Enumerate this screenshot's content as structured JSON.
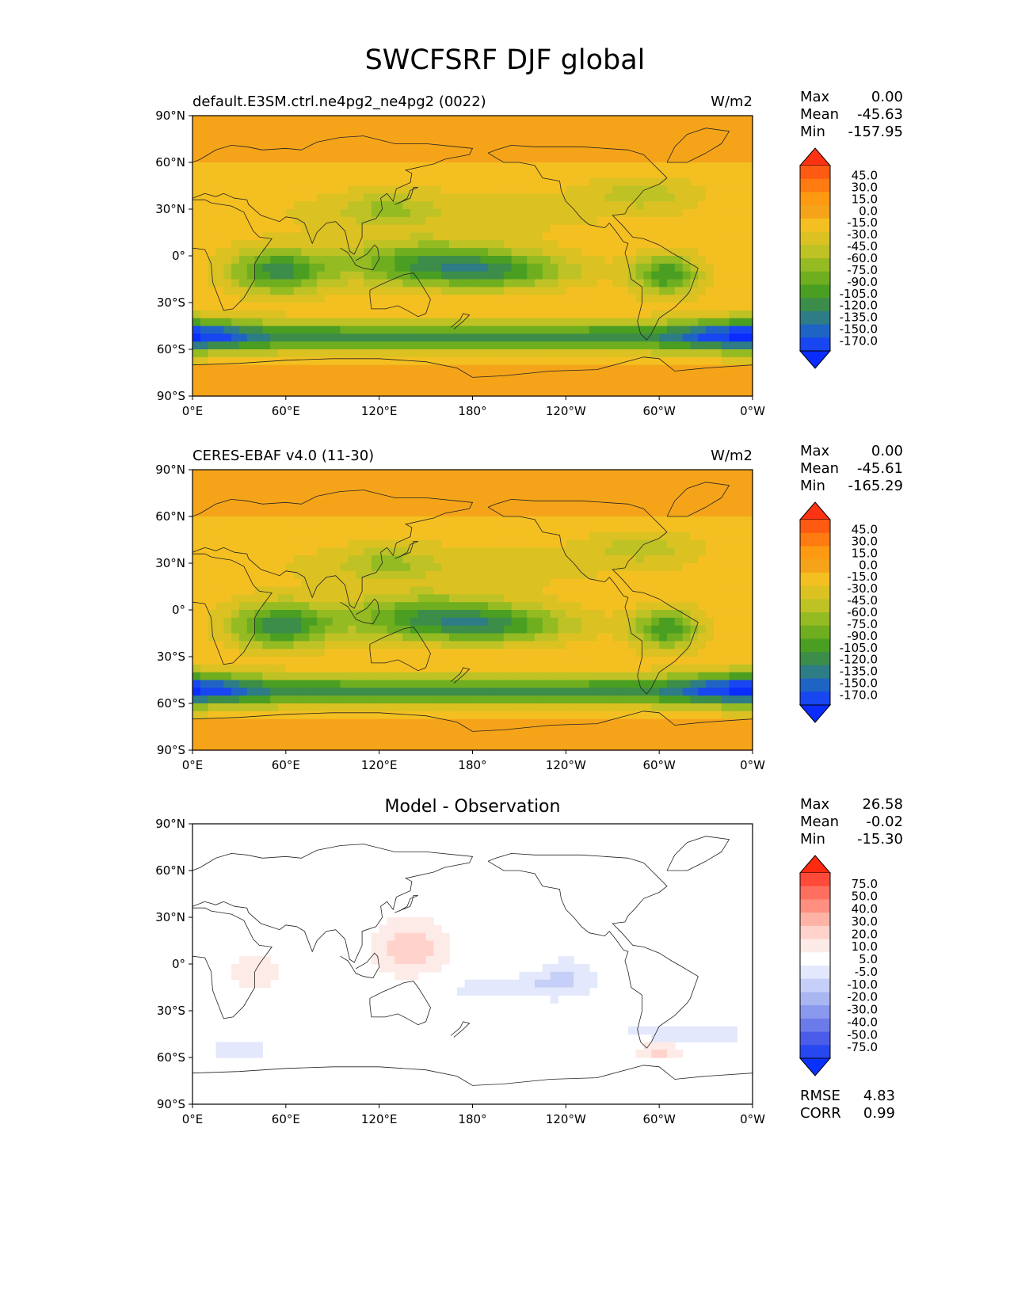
{
  "main_title": "SWCFSRF DJF global",
  "chart_data": [
    {
      "type": "heatmap",
      "title": "default.E3SM.ctrl.ne4pg2_ne4pg2 (0022)",
      "units": "W/m2",
      "stats": {
        "Max": "0.00",
        "Mean": "-45.63",
        "Min": "-157.95"
      },
      "colorbar_levels": [
        "45.0",
        "30.0",
        "15.0",
        "0.0",
        "-15.0",
        "-30.0",
        "-45.0",
        "-60.0",
        "-75.0",
        "-90.0",
        "-105.0",
        "-120.0",
        "-135.0",
        "-150.0",
        "-170.0"
      ],
      "x_ticks": [
        "0°E",
        "60°E",
        "120°E",
        "180°",
        "120°W",
        "60°W",
        "0°W"
      ],
      "y_ticks": [
        "90°N",
        "60°N",
        "30°N",
        "0°",
        "30°S",
        "60°S",
        "90°S"
      ],
      "xlim": [
        0,
        360
      ],
      "ylim": [
        -90,
        90
      ]
    },
    {
      "type": "heatmap",
      "title": "CERES-EBAF v4.0 (11-30)",
      "units": "W/m2",
      "stats": {
        "Max": "0.00",
        "Mean": "-45.61",
        "Min": "-165.29"
      },
      "colorbar_levels": [
        "45.0",
        "30.0",
        "15.0",
        "0.0",
        "-15.0",
        "-30.0",
        "-45.0",
        "-60.0",
        "-75.0",
        "-90.0",
        "-105.0",
        "-120.0",
        "-135.0",
        "-150.0",
        "-170.0"
      ],
      "x_ticks": [
        "0°E",
        "60°E",
        "120°E",
        "180°",
        "120°W",
        "60°W",
        "0°W"
      ],
      "y_ticks": [
        "90°N",
        "60°N",
        "30°N",
        "0°",
        "30°S",
        "60°S",
        "90°S"
      ],
      "xlim": [
        0,
        360
      ],
      "ylim": [
        -90,
        90
      ]
    },
    {
      "type": "heatmap",
      "title": "Model - Observation",
      "units": "",
      "stats": {
        "Max": "26.58",
        "Mean": "-0.02",
        "Min": "-15.30"
      },
      "extra_stats": {
        "RMSE": "4.83",
        "CORR": "0.99"
      },
      "colorbar_levels": [
        "75.0",
        "50.0",
        "40.0",
        "30.0",
        "20.0",
        "10.0",
        "5.0",
        "-5.0",
        "-10.0",
        "-20.0",
        "-30.0",
        "-40.0",
        "-50.0",
        "-75.0"
      ],
      "x_ticks": [
        "0°E",
        "60°E",
        "120°E",
        "180°",
        "120°W",
        "60°W",
        "0°W"
      ],
      "y_ticks": [
        "90°N",
        "60°N",
        "30°N",
        "0°",
        "30°S",
        "60°S",
        "90°S"
      ],
      "xlim": [
        0,
        360
      ],
      "ylim": [
        -90,
        90
      ]
    }
  ],
  "colors": {
    "seq": [
      "#ff3311",
      "#ff5a11",
      "#ff7a11",
      "#fd9a12",
      "#f5a41a",
      "#f4c021",
      "#dcc123",
      "#bfc225",
      "#95bb22",
      "#6fae1f",
      "#4a9f22",
      "#3c8d49",
      "#2d7c86",
      "#1f63c4",
      "#1846f0",
      "#0a2cff"
    ],
    "div": [
      "#ff2a10",
      "#ff4a3a",
      "#ff6f60",
      "#ff8f80",
      "#ffb3a6",
      "#ffd3cc",
      "#fdebe8",
      "#ffffff",
      "#e3e8fc",
      "#c6cff7",
      "#a9b6f2",
      "#8a99ee",
      "#6b7bea",
      "#4a5ce8",
      "#2748f0",
      "#0a32ff"
    ]
  }
}
